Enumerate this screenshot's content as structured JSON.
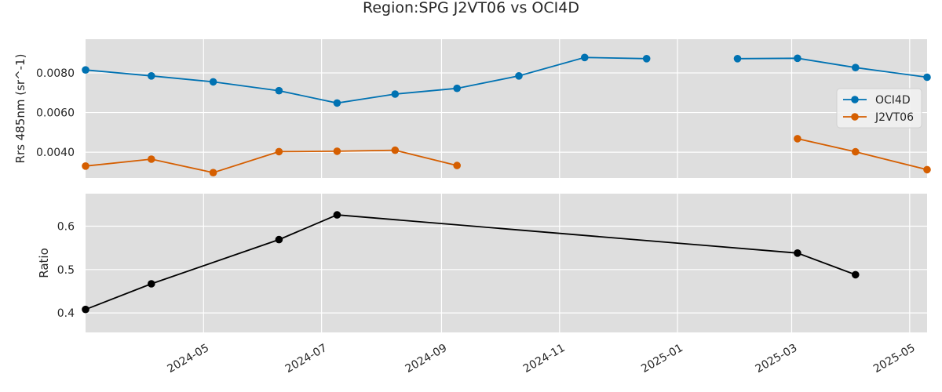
{
  "chart_data": [
    {
      "type": "line",
      "title": "Region:SPG J2VT06 vs OCI4D",
      "ylabel": "Rrs 485nm (sr^-1)",
      "xlabel": "",
      "xlim": [
        "2024-03-01",
        "2025-05-10"
      ],
      "ylim": [
        0.0027,
        0.0097
      ],
      "yticks": [
        0.004,
        0.006,
        0.008
      ],
      "ytick_labels": [
        "0.0040",
        "0.0060",
        "0.0080"
      ],
      "grid": true,
      "legend_position": "right",
      "series": [
        {
          "name": "OCI4D",
          "color": "#0072b2",
          "points": [
            {
              "x": "2024-03-01",
              "y": 0.00815
            },
            {
              "x": "2024-04-04",
              "y": 0.00785
            },
            {
              "x": "2024-05-06",
              "y": 0.00755
            },
            {
              "x": "2024-06-09",
              "y": 0.0071
            },
            {
              "x": "2024-07-09",
              "y": 0.00648
            },
            {
              "x": "2024-08-08",
              "y": 0.00693
            },
            {
              "x": "2024-09-09",
              "y": 0.00722
            },
            {
              "x": "2024-10-11",
              "y": 0.00785
            },
            {
              "x": "2024-11-14",
              "y": 0.00878
            },
            {
              "x": "2024-12-16",
              "y": 0.00872
            },
            {
              "x": "2025-01-30",
              "y": null
            },
            {
              "x": "2025-02-01",
              "y": 0.00872
            },
            {
              "x": "2025-03-04",
              "y": 0.00874
            },
            {
              "x": "2025-04-03",
              "y": 0.00827
            },
            {
              "x": "2025-05-10",
              "y": 0.00778
            }
          ]
        },
        {
          "name": "J2VT06",
          "color": "#d55e00",
          "points": [
            {
              "x": "2024-03-01",
              "y": 0.0033
            },
            {
              "x": "2024-04-04",
              "y": 0.00365
            },
            {
              "x": "2024-05-06",
              "y": 0.00297
            },
            {
              "x": "2024-06-09",
              "y": 0.00403
            },
            {
              "x": "2024-07-09",
              "y": 0.00405
            },
            {
              "x": "2024-08-08",
              "y": 0.0041
            },
            {
              "x": "2024-09-09",
              "y": 0.00333
            },
            {
              "x": "2024-12-01",
              "y": null
            },
            {
              "x": "2025-03-04",
              "y": 0.00468
            },
            {
              "x": "2025-04-03",
              "y": 0.00402
            },
            {
              "x": "2025-05-10",
              "y": 0.00312
            }
          ]
        }
      ]
    },
    {
      "type": "line",
      "title": "",
      "ylabel": "Ratio",
      "xlabel": "",
      "xlim": [
        "2024-03-01",
        "2025-05-10"
      ],
      "ylim": [
        0.355,
        0.675
      ],
      "yticks": [
        0.4,
        0.5,
        0.6
      ],
      "ytick_labels": [
        "0.4",
        "0.5",
        "0.6"
      ],
      "xtick_values": [
        "2024-05-01",
        "2024-07-01",
        "2024-09-01",
        "2024-11-01",
        "2025-01-01",
        "2025-03-01",
        "2025-05-01"
      ],
      "xtick_labels": [
        "2024-05",
        "2024-07",
        "2024-09",
        "2024-11",
        "2025-01",
        "2025-03",
        "2025-05"
      ],
      "grid": true,
      "series": [
        {
          "color": "#000000",
          "points": [
            {
              "x": "2024-03-01",
              "y": 0.408
            },
            {
              "x": "2024-04-04",
              "y": 0.467
            },
            {
              "x": "2024-06-09",
              "y": 0.569
            },
            {
              "x": "2024-07-09",
              "y": 0.626
            },
            {
              "x": "2025-03-04",
              "y": 0.538
            },
            {
              "x": "2025-04-03",
              "y": 0.488
            }
          ]
        }
      ]
    }
  ]
}
